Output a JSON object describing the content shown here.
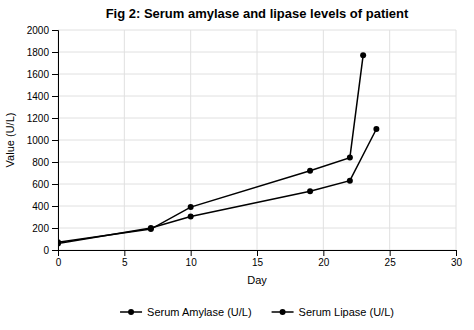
{
  "chart_data": {
    "type": "line",
    "title": "Fig 2: Serum amylase and lipase levels of patient",
    "xlabel": "Day",
    "ylabel": "Value (U/L)",
    "xlim": [
      0,
      30
    ],
    "ylim": [
      0,
      2000
    ],
    "xticks": [
      0,
      5,
      10,
      15,
      20,
      25,
      30
    ],
    "yticks": [
      0,
      200,
      400,
      600,
      800,
      1000,
      1200,
      1400,
      1600,
      1800,
      2000
    ],
    "grid": true,
    "legend": "bottom",
    "series": [
      {
        "name": "Serum Amylase (U/L)",
        "color": "#000000",
        "marker": "circle",
        "x": [
          0,
          7,
          10,
          19,
          22,
          24
        ],
        "values": [
          60,
          200,
          305,
          535,
          630,
          1100
        ]
      },
      {
        "name": "Serum Lipase (U/L)",
        "color": "#000000",
        "marker": "circle",
        "x": [
          0,
          7,
          10,
          19,
          22,
          23
        ],
        "values": [
          70,
          190,
          390,
          720,
          840,
          1770
        ]
      }
    ]
  }
}
